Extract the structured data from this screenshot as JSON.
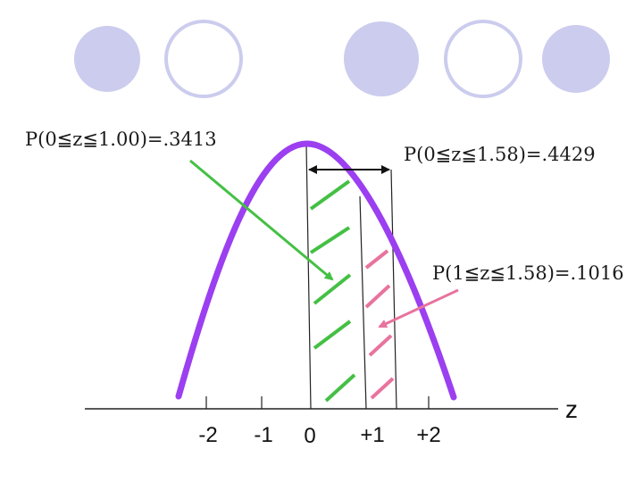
{
  "decor": {
    "circles": [
      {
        "style": "filled",
        "color": "#ccccee"
      },
      {
        "style": "outline",
        "color": "#ccccee"
      },
      {
        "style": "filled",
        "color": "#ccccee"
      },
      {
        "style": "outline",
        "color": "#ccccee"
      },
      {
        "style": "filled",
        "color": "#ccccee"
      }
    ]
  },
  "labels": {
    "p_0_to_1": "P(0≦z≦1.00)=.3413",
    "p_0_to_158": "P(0≦z≦1.58)=.4429",
    "p_1_to_158": "P(1≦z≦1.58)=.1016"
  },
  "axis": {
    "name": "z",
    "ticks": [
      {
        "z": -2,
        "label": "-2"
      },
      {
        "z": -1,
        "label": "-1"
      },
      {
        "z": 0,
        "label": "0"
      },
      {
        "z": 1,
        "label": "+1"
      },
      {
        "z": 2,
        "label": "+2"
      }
    ]
  },
  "colors": {
    "curve": "#9b3ff0",
    "region_0_1": "#44c044",
    "region_1_158": "#e8739e",
    "axis": "#222222"
  }
}
